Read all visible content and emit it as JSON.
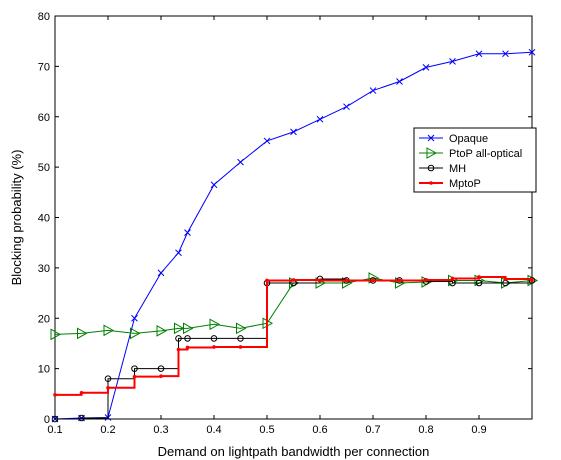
{
  "chart_data": {
    "type": "line",
    "xlabel": "Demand on lightpath bandwidth per connection",
    "ylabel": "Blocking probability (%)",
    "xlim": [
      0.1,
      1.0
    ],
    "ylim": [
      0,
      80
    ],
    "x_ticks": [
      0.1,
      0.2,
      0.3,
      0.4,
      0.5,
      0.6,
      0.7,
      0.8,
      0.9
    ],
    "x_tick_labels": [
      "0.1",
      "0.2",
      "0.3",
      "0.4",
      "0.5",
      "0.6",
      "0.7",
      "0.8",
      "0.9"
    ],
    "y_ticks": [
      0,
      10,
      20,
      30,
      40,
      50,
      60,
      70,
      80
    ],
    "y_tick_labels": [
      "0",
      "10",
      "20",
      "30",
      "40",
      "50",
      "60",
      "70",
      "80"
    ],
    "grid": false,
    "legend_position": "right",
    "series": [
      {
        "name": "Opaque",
        "color": "#0000ff",
        "marker": "x",
        "x": [
          0.1,
          0.15,
          0.2,
          0.25,
          0.3,
          0.333,
          0.35,
          0.4,
          0.45,
          0.5,
          0.55,
          0.6,
          0.65,
          0.7,
          0.75,
          0.8,
          0.85,
          0.9,
          0.95,
          1.0
        ],
        "y": [
          0,
          0.2,
          0.3,
          20,
          29,
          33,
          37,
          46.5,
          51,
          55.2,
          57,
          59.5,
          62,
          65.2,
          67,
          69.8,
          71,
          72.5,
          72.5,
          72.8
        ]
      },
      {
        "name": "PtoP all-optical",
        "color": "#008000",
        "marker": "triangle-right",
        "x": [
          0.1,
          0.15,
          0.2,
          0.25,
          0.3,
          0.333,
          0.35,
          0.4,
          0.45,
          0.5,
          0.55,
          0.6,
          0.65,
          0.7,
          0.75,
          0.8,
          0.85,
          0.9,
          0.95,
          1.0
        ],
        "y": [
          16.8,
          17,
          17.6,
          17,
          17.5,
          18,
          18,
          18.8,
          18,
          19,
          27,
          27,
          27,
          28,
          27,
          27.2,
          27.5,
          27.5,
          27,
          27.5
        ]
      },
      {
        "name": "MH",
        "color": "#000000",
        "marker": "circle",
        "step": true,
        "x": [
          0.1,
          0.15,
          0.2,
          0.25,
          0.3,
          0.333,
          0.35,
          0.4,
          0.45,
          0.5,
          0.55,
          0.6,
          0.65,
          0.7,
          0.75,
          0.8,
          0.85,
          0.9,
          0.95,
          1.0
        ],
        "y": [
          0,
          0.2,
          8,
          10,
          10,
          16,
          16,
          16,
          16,
          27,
          27,
          27.8,
          27.5,
          27.5,
          27.5,
          27.3,
          27,
          27,
          27,
          27.5
        ]
      },
      {
        "name": "MptoP",
        "color": "#ff0000",
        "marker": "dot",
        "step": true,
        "x": [
          0.1,
          0.15,
          0.2,
          0.25,
          0.3,
          0.333,
          0.35,
          0.4,
          0.45,
          0.5,
          0.55,
          0.6,
          0.65,
          0.7,
          0.75,
          0.8,
          0.85,
          0.9,
          0.95,
          1.0
        ],
        "y": [
          4.8,
          5.2,
          6.2,
          8.4,
          8.5,
          13.8,
          14.2,
          14.3,
          14.3,
          27.5,
          27.6,
          27.5,
          27.5,
          27.5,
          27.5,
          27.6,
          27.9,
          28.2,
          27.8,
          27.5
        ]
      }
    ]
  }
}
